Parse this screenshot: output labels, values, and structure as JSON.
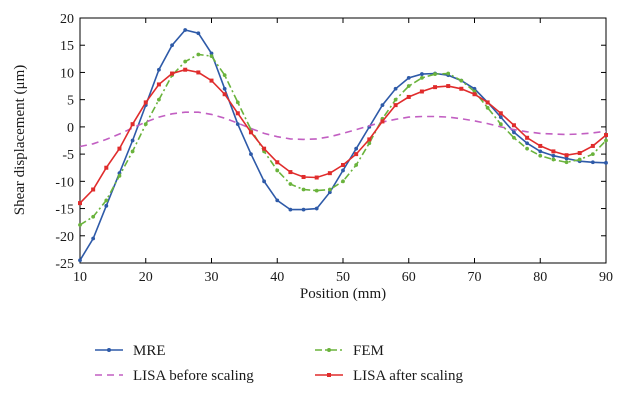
{
  "chart_data": {
    "type": "line",
    "xlabel": "Position (mm)",
    "ylabel": "Shear displacement (μm)",
    "xlim": [
      10,
      90
    ],
    "ylim": [
      -25,
      20
    ],
    "x_ticks": [
      10,
      20,
      30,
      40,
      50,
      60,
      70,
      80,
      90
    ],
    "y_ticks": [
      -25,
      -20,
      -15,
      -10,
      -5,
      0,
      5,
      10,
      15,
      20
    ],
    "grid": false,
    "legend_position": "bottom",
    "series": [
      {
        "name": "MRE",
        "color": "#2e5aa8",
        "line_style": "solid",
        "marker": "circle",
        "x": [
          10,
          12,
          14,
          16,
          18,
          20,
          22,
          24,
          26,
          28,
          30,
          32,
          34,
          36,
          38,
          40,
          42,
          44,
          46,
          48,
          50,
          52,
          54,
          56,
          58,
          60,
          62,
          64,
          66,
          68,
          70,
          72,
          74,
          76,
          78,
          80,
          82,
          84,
          86,
          88,
          90
        ],
        "y": [
          -24.5,
          -20.5,
          -14.5,
          -8.5,
          -2.5,
          4.0,
          10.5,
          15.0,
          17.8,
          17.2,
          13.5,
          7.0,
          0.5,
          -5.0,
          -10.0,
          -13.5,
          -15.2,
          -15.2,
          -15.0,
          -12.0,
          -8.0,
          -4.0,
          0.0,
          4.0,
          7.0,
          9.0,
          9.7,
          9.8,
          9.5,
          8.5,
          7.0,
          4.5,
          1.8,
          -1.0,
          -3.0,
          -4.5,
          -5.3,
          -5.8,
          -6.3,
          -6.5,
          -6.6
        ]
      },
      {
        "name": "FEM",
        "color": "#6ab33c",
        "line_style": "dash-dot",
        "marker": "circle",
        "x": [
          10,
          12,
          14,
          16,
          18,
          20,
          22,
          24,
          26,
          28,
          30,
          32,
          34,
          36,
          38,
          40,
          42,
          44,
          46,
          48,
          50,
          52,
          54,
          56,
          58,
          60,
          62,
          64,
          66,
          68,
          70,
          72,
          74,
          76,
          78,
          80,
          82,
          84,
          86,
          88,
          90
        ],
        "y": [
          -18.0,
          -16.5,
          -13.5,
          -9.0,
          -4.5,
          0.5,
          5.0,
          9.5,
          12.0,
          13.3,
          13.0,
          9.5,
          4.5,
          -0.5,
          -4.5,
          -8.0,
          -10.5,
          -11.5,
          -11.7,
          -11.5,
          -10.0,
          -7.0,
          -3.0,
          1.5,
          5.0,
          7.5,
          9.0,
          9.7,
          9.8,
          8.5,
          6.5,
          3.5,
          0.5,
          -2.0,
          -4.0,
          -5.3,
          -6.0,
          -6.5,
          -6.0,
          -5.0,
          -2.5
        ]
      },
      {
        "name": "LISA before scaling",
        "color": "#c25fc2",
        "line_style": "dashed",
        "marker": "none",
        "x": [
          10,
          12,
          14,
          16,
          18,
          20,
          22,
          24,
          26,
          28,
          30,
          32,
          34,
          36,
          38,
          40,
          42,
          44,
          46,
          48,
          50,
          52,
          54,
          56,
          58,
          60,
          62,
          64,
          66,
          68,
          70,
          72,
          74,
          76,
          78,
          80,
          82,
          84,
          86,
          88,
          90
        ],
        "y": [
          -3.6,
          -3.1,
          -2.3,
          -1.3,
          -0.2,
          0.9,
          1.8,
          2.4,
          2.7,
          2.7,
          2.3,
          1.6,
          0.7,
          -0.3,
          -1.2,
          -1.8,
          -2.2,
          -2.3,
          -2.2,
          -1.8,
          -1.2,
          -0.5,
          0.2,
          0.9,
          1.4,
          1.8,
          1.9,
          1.9,
          1.8,
          1.5,
          1.1,
          0.6,
          0.0,
          -0.5,
          -0.9,
          -1.2,
          -1.3,
          -1.4,
          -1.3,
          -1.1,
          -0.8
        ]
      },
      {
        "name": "LISA after scaling",
        "color": "#e02c2c",
        "line_style": "solid",
        "marker": "square",
        "x": [
          10,
          12,
          14,
          16,
          18,
          20,
          22,
          24,
          26,
          28,
          30,
          32,
          34,
          36,
          38,
          40,
          42,
          44,
          46,
          48,
          50,
          52,
          54,
          56,
          58,
          60,
          62,
          64,
          66,
          68,
          70,
          72,
          74,
          76,
          78,
          80,
          82,
          84,
          86,
          88,
          90
        ],
        "y": [
          -14.0,
          -11.5,
          -7.5,
          -4.0,
          0.5,
          4.5,
          7.8,
          9.8,
          10.5,
          10.0,
          8.5,
          6.0,
          2.5,
          -1.0,
          -4.0,
          -6.5,
          -8.3,
          -9.2,
          -9.3,
          -8.5,
          -7.0,
          -5.0,
          -2.3,
          1.0,
          4.0,
          5.5,
          6.5,
          7.3,
          7.5,
          7.0,
          6.0,
          4.5,
          2.5,
          0.3,
          -2.0,
          -3.5,
          -4.5,
          -5.2,
          -4.8,
          -3.5,
          -1.5
        ]
      }
    ]
  }
}
